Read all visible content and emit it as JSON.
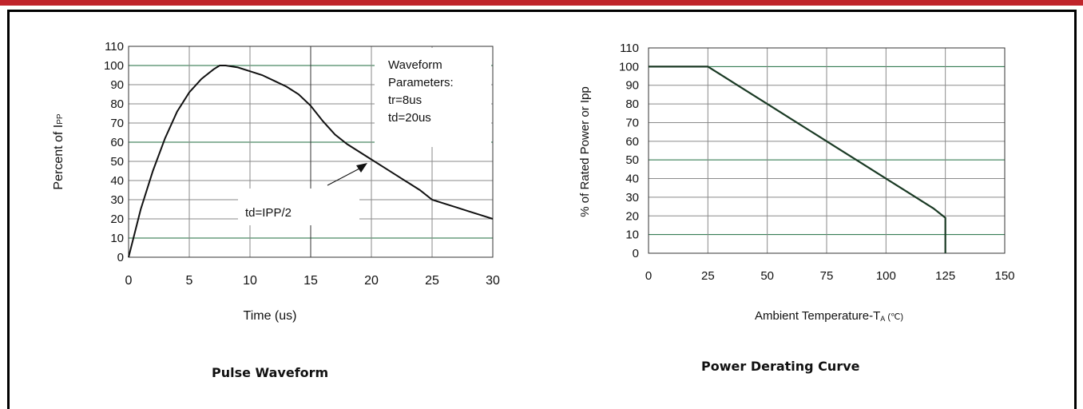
{
  "colors": {
    "banner": "#c0242b",
    "grid": "#1c6b3e",
    "curve": "#1a3a24"
  },
  "charts": [
    {
      "caption": "Pulse Waveform"
    },
    {
      "caption": "Power Derating Curve"
    }
  ],
  "chart_data": [
    {
      "type": "line",
      "title": "Pulse Waveform",
      "xlabel": "Time (us)",
      "ylabel": "Percent of I",
      "ylabel_sub": "PP",
      "xlim": [
        0,
        30
      ],
      "ylim": [
        0,
        110
      ],
      "x_ticks": [
        "0",
        "5",
        "10",
        "15",
        "20",
        "25",
        "30"
      ],
      "y_ticks": [
        "0",
        "10",
        "20",
        "30",
        "40",
        "50",
        "60",
        "70",
        "80",
        "90",
        "100",
        "110"
      ],
      "grid": true,
      "series": [
        {
          "x": [
            0,
            1,
            2,
            3,
            4,
            5,
            6,
            7,
            7.5,
            8,
            9,
            10,
            11,
            12,
            13,
            14,
            15,
            16,
            17,
            18,
            19,
            20,
            21,
            22,
            23,
            24,
            25,
            26,
            27,
            28,
            29,
            30
          ],
          "y": [
            0,
            25,
            45,
            62,
            76,
            86,
            93,
            98,
            100,
            100,
            99,
            97,
            95,
            92,
            89,
            85,
            79,
            71,
            64,
            59,
            55,
            51,
            47,
            43,
            39,
            35,
            30,
            28,
            26,
            24,
            22,
            20
          ]
        }
      ],
      "annotations": {
        "params_title": "Waveform",
        "params_lines": [
          "Parameters:",
          "tr=8us",
          "td=20us"
        ],
        "td_label": "td=IPP/2",
        "arrow_to": [
          20,
          50
        ]
      }
    },
    {
      "type": "line",
      "title": "Power Derating Curve",
      "xlabel": "Ambient Temperature-T",
      "xlabel_sub": "A",
      "xlabel_unit": "(℃)",
      "ylabel": "% of Rated Power or Ipp",
      "xlim": [
        0,
        150
      ],
      "ylim": [
        0,
        110
      ],
      "x_ticks": [
        "0",
        "25",
        "50",
        "75",
        "100",
        "125",
        "150"
      ],
      "y_ticks": [
        "0",
        "10",
        "20",
        "30",
        "40",
        "50",
        "60",
        "70",
        "80",
        "90",
        "100",
        "110"
      ],
      "grid": true,
      "series": [
        {
          "x": [
            0,
            25,
            30,
            40,
            50,
            60,
            70,
            80,
            90,
            100,
            110,
            120,
            125,
            125
          ],
          "y": [
            100,
            100,
            96,
            88,
            80,
            72,
            64,
            56,
            48,
            40,
            32,
            24,
            19,
            0
          ]
        }
      ]
    }
  ]
}
